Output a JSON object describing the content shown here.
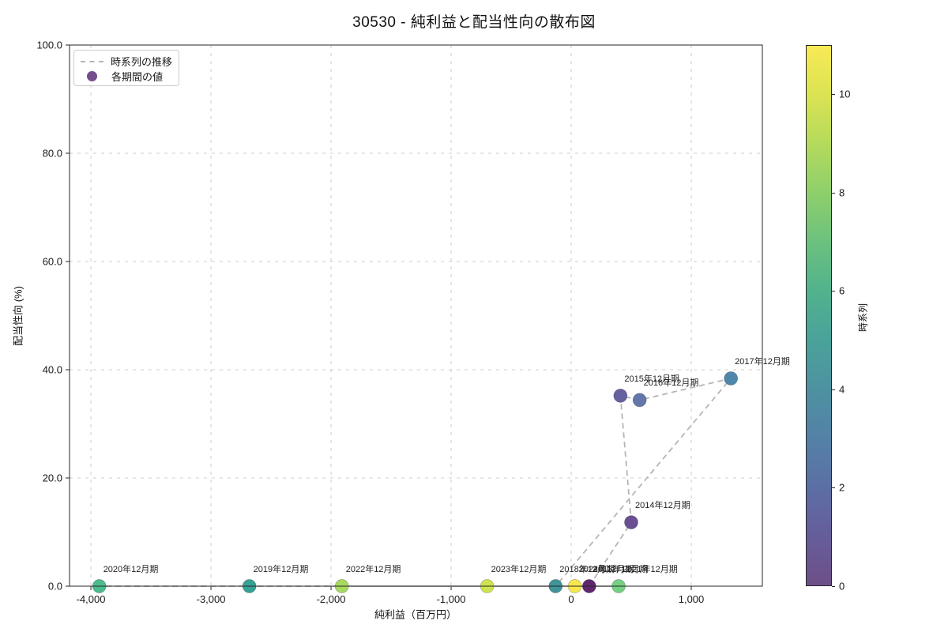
{
  "title": "30530 - 純利益と配当性向の散布図",
  "legend": {
    "items": [
      {
        "type": "dashed-line",
        "label": "時系列の推移",
        "color": "#b5b5b5"
      },
      {
        "type": "marker",
        "label": "各期間の値",
        "color": "#744e8f"
      }
    ]
  },
  "colorbar": {
    "label": "時系列",
    "min": 0,
    "max": 11,
    "ticks": [
      {
        "value": 0,
        "label": "0"
      },
      {
        "value": 2,
        "label": "2"
      },
      {
        "value": 4,
        "label": "4"
      },
      {
        "value": 6,
        "label": "6"
      },
      {
        "value": 8,
        "label": "8"
      },
      {
        "value": 10,
        "label": "10"
      }
    ],
    "gradient": [
      "#6d4f87",
      "#665d9b",
      "#5c6fa5",
      "#5481a6",
      "#4e92a1",
      "#4aa29a",
      "#52b28d",
      "#6cc17e",
      "#8ecf6c",
      "#b4da5c",
      "#dbe352",
      "#f8ea55"
    ]
  },
  "chart_data": {
    "type": "scatter",
    "title": "30530 - 純利益と配当性向の散布図",
    "xlabel": "純利益（百万円）",
    "ylabel": "配当性向 (%)",
    "xlim": [
      -4178,
      1592
    ],
    "ylim": [
      0,
      100
    ],
    "grid": true,
    "legend_position": "upper left",
    "colorbar_label": "時系列",
    "connect_style": "dashed-gray",
    "x_ticks": [
      {
        "value": -4000,
        "label": "-4,000"
      },
      {
        "value": -3000,
        "label": "-3,000"
      },
      {
        "value": -2000,
        "label": "-2,000"
      },
      {
        "value": -1000,
        "label": "-1,000"
      },
      {
        "value": 0,
        "label": "0"
      },
      {
        "value": 1000,
        "label": "1,000"
      }
    ],
    "y_ticks": [
      {
        "value": 0,
        "label": "0.0"
      },
      {
        "value": 20,
        "label": "20.0"
      },
      {
        "value": 40,
        "label": "40.0"
      },
      {
        "value": 60,
        "label": "60.0"
      },
      {
        "value": 80,
        "label": "80.0"
      },
      {
        "value": 100,
        "label": "100.0"
      }
    ],
    "points": [
      {
        "label": "2013年12月期",
        "x": 150,
        "y": 0.0,
        "t": 0,
        "color": "#60276e"
      },
      {
        "label": "2014年12月期",
        "x": 500,
        "y": 11.8,
        "t": 1,
        "color": "#6a4f93"
      },
      {
        "label": "2015年12月期",
        "x": 410,
        "y": 35.2,
        "t": 2,
        "color": "#66629f"
      },
      {
        "label": "2016年12月期",
        "x": 570,
        "y": 34.4,
        "t": 3,
        "color": "#6377a9"
      },
      {
        "label": "2017年12月期",
        "x": 1330,
        "y": 38.4,
        "t": 4,
        "color": "#4f87ab"
      },
      {
        "label": "2018年12月期",
        "x": -130,
        "y": 0.0,
        "t": 5,
        "color": "#3f949a"
      },
      {
        "label": "2019年12月期",
        "x": -2680,
        "y": 0.0,
        "t": 6,
        "color": "#35a295"
      },
      {
        "label": "2020年12月期",
        "x": -3930,
        "y": 0.0,
        "t": 7,
        "color": "#4bbc8d"
      },
      {
        "label": "2021年12月期",
        "x": 395,
        "y": 0.0,
        "t": 8,
        "color": "#76d083"
      },
      {
        "label": "2022年12月期",
        "x": -1910,
        "y": 0.0,
        "t": 9,
        "color": "#a6d95f"
      },
      {
        "label": "2023年12月期",
        "x": -700,
        "y": 0.0,
        "t": 10,
        "color": "#cfe351"
      },
      {
        "label": "2024年12月期",
        "x": 30,
        "y": 0.0,
        "t": 11,
        "color": "#f7e74c"
      }
    ]
  }
}
